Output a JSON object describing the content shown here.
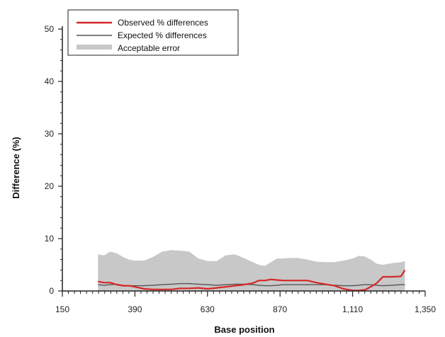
{
  "chart_data": {
    "type": "line",
    "title": "",
    "xlabel": "Base position",
    "ylabel": "Difference (%)",
    "xlim": [
      150,
      1350
    ],
    "ylim": [
      0,
      50
    ],
    "x_ticks": [
      150,
      390,
      630,
      870,
      1110,
      1350
    ],
    "x_tick_labels": [
      "150",
      "390",
      "630",
      "870",
      "1,110",
      "1,350"
    ],
    "y_ticks": [
      0,
      10,
      20,
      30,
      40,
      50
    ],
    "y_tick_labels": [
      "0",
      "10",
      "20",
      "30",
      "40",
      "50"
    ],
    "grid": false,
    "legend_position": "top-left",
    "legend": {
      "observed": "Observed % differences",
      "expected": "Expected % differences",
      "band": "Acceptable error"
    },
    "x": [
      268,
      288,
      308,
      330,
      350,
      370,
      390,
      420,
      450,
      480,
      510,
      540,
      570,
      600,
      630,
      660,
      690,
      720,
      750,
      780,
      800,
      820,
      840,
      860,
      880,
      900,
      930,
      960,
      990,
      1020,
      1050,
      1080,
      1110,
      1130,
      1150,
      1170,
      1190,
      1210,
      1240,
      1270,
      1283
    ],
    "series": [
      {
        "name": "Observed % differences",
        "color": "#d62728",
        "values": [
          1.8,
          1.6,
          1.6,
          1.2,
          1.0,
          1.0,
          0.8,
          0.4,
          0.3,
          0.3,
          0.3,
          0.5,
          0.5,
          0.6,
          0.4,
          0.6,
          0.8,
          1.0,
          1.2,
          1.5,
          2.0,
          2.0,
          2.2,
          2.1,
          2.0,
          2.0,
          2.0,
          2.0,
          1.6,
          1.3,
          1.0,
          0.4,
          0.1,
          0.1,
          0.2,
          0.8,
          1.5,
          2.7,
          2.7,
          2.8,
          4.0
        ]
      },
      {
        "name": "Expected % differences",
        "color": "#555555",
        "values": [
          1.2,
          1.1,
          1.2,
          1.3,
          1.1,
          1.0,
          1.0,
          1.0,
          1.1,
          1.2,
          1.3,
          1.4,
          1.4,
          1.3,
          1.2,
          1.1,
          1.2,
          1.3,
          1.3,
          1.2,
          1.1,
          1.0,
          1.0,
          1.1,
          1.2,
          1.2,
          1.2,
          1.2,
          1.2,
          1.2,
          1.1,
          1.0,
          1.0,
          1.1,
          1.2,
          1.2,
          1.1,
          1.0,
          1.1,
          1.2,
          1.2
        ]
      }
    ],
    "band": {
      "name": "Acceptable error",
      "color": "#c8c8c8",
      "lower": [
        0,
        0,
        0,
        0,
        0,
        0,
        0,
        0,
        0,
        0,
        0,
        0,
        0,
        0,
        0,
        0,
        0,
        0,
        0,
        0,
        0,
        0,
        0,
        0,
        0,
        0,
        0,
        0,
        0,
        0,
        0,
        0,
        0,
        0,
        0,
        0,
        0,
        0,
        0,
        0,
        0
      ],
      "upper": [
        7.0,
        6.8,
        7.5,
        7.2,
        6.5,
        6.0,
        5.8,
        5.8,
        6.5,
        7.5,
        7.8,
        7.7,
        7.5,
        6.2,
        5.7,
        5.7,
        6.8,
        7.0,
        6.3,
        5.5,
        5.0,
        4.8,
        5.5,
        6.2,
        6.2,
        6.3,
        6.3,
        6.0,
        5.6,
        5.5,
        5.5,
        5.8,
        6.2,
        6.7,
        6.6,
        6.0,
        5.2,
        5.0,
        5.3,
        5.5,
        5.7
      ]
    }
  }
}
